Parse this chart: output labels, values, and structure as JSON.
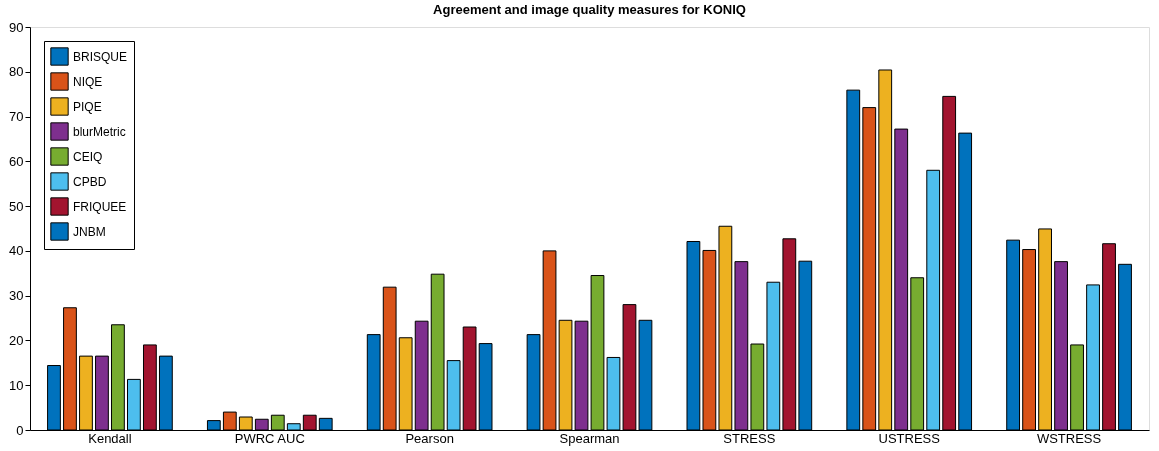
{
  "chart_data": {
    "type": "bar",
    "title": "Agreement and image quality measures for KONIQ",
    "categories": [
      "Kendall",
      "PWRC AUC",
      "Pearson",
      "Spearman",
      "STRESS",
      "USTRESS",
      "WSTRESS"
    ],
    "series": [
      {
        "name": "BRISQUE",
        "color": "#0072bd",
        "values": [
          14.4,
          2.1,
          21.3,
          21.3,
          42.1,
          75.9,
          42.4
        ]
      },
      {
        "name": "NIQE",
        "color": "#d95319",
        "values": [
          27.3,
          4.0,
          31.9,
          40.0,
          40.1,
          72.0,
          40.3
        ]
      },
      {
        "name": "PIQE",
        "color": "#edb120",
        "values": [
          16.5,
          2.9,
          20.6,
          24.5,
          45.5,
          80.4,
          44.9
        ]
      },
      {
        "name": "blurMetric",
        "color": "#7e2f8e",
        "values": [
          16.5,
          2.4,
          24.3,
          24.3,
          37.6,
          67.2,
          37.6
        ]
      },
      {
        "name": "CEIQ",
        "color": "#77ac30",
        "values": [
          23.5,
          3.3,
          34.8,
          34.5,
          19.2,
          34.0,
          19.0
        ]
      },
      {
        "name": "CPBD",
        "color": "#4dbeee",
        "values": [
          11.3,
          1.4,
          15.5,
          16.2,
          33.0,
          58.0,
          32.4
        ]
      },
      {
        "name": "FRIQUEE",
        "color": "#a2142f",
        "values": [
          19.0,
          3.3,
          23.0,
          28.0,
          42.7,
          74.5,
          41.6
        ]
      },
      {
        "name": "JNBM",
        "color": "#0072bd",
        "values": [
          16.5,
          2.6,
          19.3,
          24.5,
          37.7,
          66.3,
          37.0
        ]
      }
    ],
    "ylim": [
      0,
      90
    ],
    "yticks": [
      0,
      10,
      20,
      30,
      40,
      50,
      60,
      70,
      80,
      90
    ],
    "grid": false,
    "legend": "top left"
  }
}
